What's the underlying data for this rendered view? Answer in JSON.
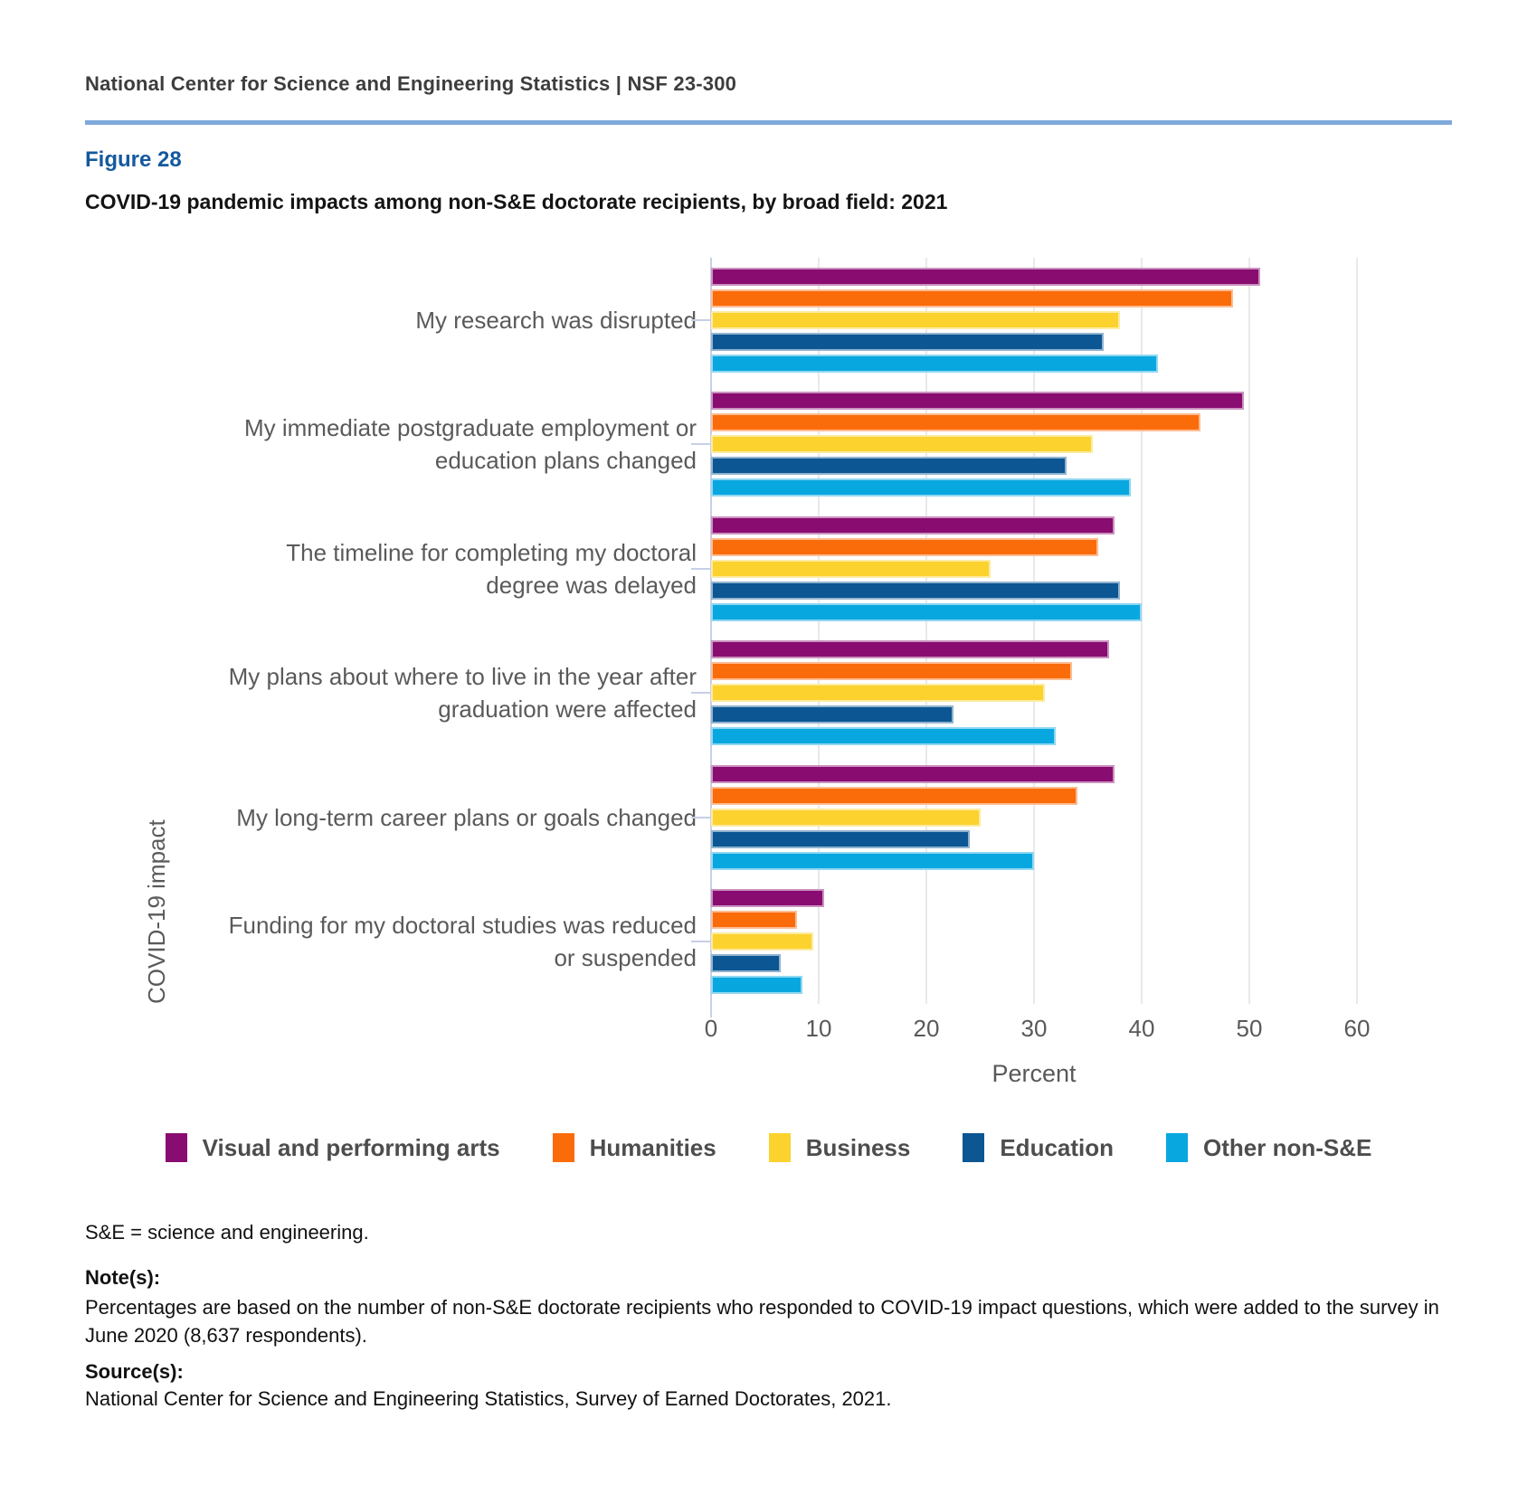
{
  "header": {
    "text": "National Center for Science and Engineering Statistics  |  NSF 23-300"
  },
  "figure": {
    "label": "Figure 28",
    "title": "COVID-19 pandemic impacts among non-S&E doctorate recipients, by broad field: 2021"
  },
  "chart_data": {
    "type": "bar",
    "orientation": "horizontal",
    "ylabel": "COVID-19 impact",
    "xlabel": "Percent",
    "xlim": [
      0,
      60
    ],
    "xticks": [
      0,
      10,
      20,
      30,
      40,
      50,
      60
    ],
    "grid": true,
    "legend_position": "bottom",
    "categories": [
      "My research was disrupted",
      "My immediate postgraduate employment or education plans changed",
      "The timeline for completing my doctoral degree was delayed",
      "My plans about where to live in the year after graduation were affected",
      "My long-term career plans or goals changed",
      "Funding for my doctoral studies was reduced or suspended"
    ],
    "series": [
      {
        "name": "Visual and performing arts",
        "color": "#890C70",
        "values": [
          51,
          49.5,
          37.5,
          37,
          37.5,
          10.5
        ]
      },
      {
        "name": "Humanities",
        "color": "#FA6B0A",
        "values": [
          48.5,
          45.5,
          36,
          33.5,
          34,
          8
        ]
      },
      {
        "name": "Business",
        "color": "#FBD22E",
        "values": [
          38,
          35.5,
          26,
          31,
          25,
          9.5
        ]
      },
      {
        "name": "Education",
        "color": "#0B5693",
        "values": [
          36.5,
          33,
          38,
          22.5,
          24,
          6.5
        ]
      },
      {
        "name": "Other non-S&E",
        "color": "#09A7E0",
        "values": [
          41.5,
          39,
          40,
          32,
          30,
          8.5
        ]
      }
    ]
  },
  "notes": {
    "abbrev": "S&E = science and engineering.",
    "note_label": "Note(s):",
    "note_text": "Percentages are based on the number of non-S&E doctorate recipients who responded to COVID-19 impact questions, which were added to the survey in June 2020 (8,637 respondents).",
    "source_label": "Source(s):",
    "source_text": "National Center for Science and Engineering Statistics, Survey of Earned Doctorates, 2021."
  }
}
